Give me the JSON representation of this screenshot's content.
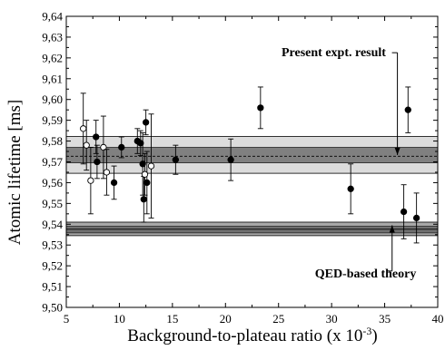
{
  "chart_data": {
    "type": "scatter",
    "xlabel": "Background-to-plateau ratio (x 10",
    "xlabel_exponent": "-3",
    "xlabel_close": ")",
    "ylabel": "Atomic lifetime [ms]",
    "xlim": [
      5,
      40
    ],
    "ylim": [
      9.5,
      9.64
    ],
    "xticks": [
      5,
      10,
      15,
      20,
      25,
      30,
      35,
      40
    ],
    "xtick_labels": [
      "5",
      "10",
      "15",
      "20",
      "25",
      "30",
      "35",
      "40"
    ],
    "yticks": [
      9.5,
      9.51,
      9.52,
      9.53,
      9.54,
      9.55,
      9.56,
      9.57,
      9.58,
      9.59,
      9.6,
      9.61,
      9.62,
      9.63,
      9.64
    ],
    "ytick_labels": [
      "9,50",
      "9,51",
      "9,52",
      "9,53",
      "9,54",
      "9,55",
      "9,56",
      "9,57",
      "9,58",
      "9,59",
      "9,60",
      "9,61",
      "9,62",
      "9,63",
      "9,64"
    ],
    "grid": false,
    "series": [
      {
        "marker": "filled",
        "color": "#000000",
        "points": [
          {
            "x": 7.8,
            "y": 9.582,
            "err": 0.008
          },
          {
            "x": 7.9,
            "y": 9.57,
            "err": 0.008
          },
          {
            "x": 9.5,
            "y": 9.56,
            "err": 0.008
          },
          {
            "x": 10.2,
            "y": 9.577,
            "err": 0.005
          },
          {
            "x": 11.7,
            "y": 9.58,
            "err": 0.006
          },
          {
            "x": 12.0,
            "y": 9.579,
            "err": 0.006
          },
          {
            "x": 12.2,
            "y": 9.569,
            "err": 0.015
          },
          {
            "x": 12.3,
            "y": 9.552,
            "err": 0.011
          },
          {
            "x": 12.5,
            "y": 9.589,
            "err": 0.006
          },
          {
            "x": 12.6,
            "y": 9.56,
            "err": 0.015
          },
          {
            "x": 15.3,
            "y": 9.571,
            "err": 0.007
          },
          {
            "x": 20.5,
            "y": 9.571,
            "err": 0.01
          },
          {
            "x": 23.3,
            "y": 9.596,
            "err": 0.01
          },
          {
            "x": 31.8,
            "y": 9.557,
            "err": 0.012
          },
          {
            "x": 36.8,
            "y": 9.546,
            "err": 0.013
          },
          {
            "x": 37.2,
            "y": 9.595,
            "err": 0.011
          },
          {
            "x": 38.0,
            "y": 9.543,
            "err": 0.012
          }
        ]
      },
      {
        "marker": "open",
        "color": "#000000",
        "points": [
          {
            "x": 6.6,
            "y": 9.586,
            "err": 0.017
          },
          {
            "x": 6.9,
            "y": 9.578,
            "err": 0.012
          },
          {
            "x": 7.3,
            "y": 9.561,
            "err": 0.016
          },
          {
            "x": 8.5,
            "y": 9.577,
            "err": 0.015
          },
          {
            "x": 8.8,
            "y": 9.565,
            "err": 0.011
          },
          {
            "x": 12.4,
            "y": 9.564,
            "err": 0.01
          },
          {
            "x": 13.0,
            "y": 9.568,
            "err": 0.025
          }
        ]
      }
    ],
    "bands": [
      {
        "name": "Present expt. result",
        "center": 9.5727,
        "inner": [
          9.5695,
          9.577
        ],
        "outer": [
          9.5645,
          9.5822
        ],
        "inner_color": "#808080",
        "outer_color": "#dcdcdc"
      },
      {
        "name": "QED-based theory",
        "center": 9.5376,
        "inner": [
          9.5358,
          9.539
        ],
        "outer": [
          9.5345,
          9.541
        ],
        "inner_color": "#707070",
        "outer_color": "#a8a8a8"
      }
    ],
    "annotations": [
      {
        "text": "Present expt. result",
        "x_label": 30.2,
        "y_label": 9.623,
        "arrow_x": 36.2,
        "arrow_from_y": 9.6225,
        "arrow_to_y": 9.5733
      },
      {
        "text": "QED-based theory",
        "x_label": 33.2,
        "y_label": 9.5165,
        "arrow_x": 35.7,
        "arrow_from_y": 9.5175,
        "arrow_to_y": 9.5395
      }
    ]
  }
}
